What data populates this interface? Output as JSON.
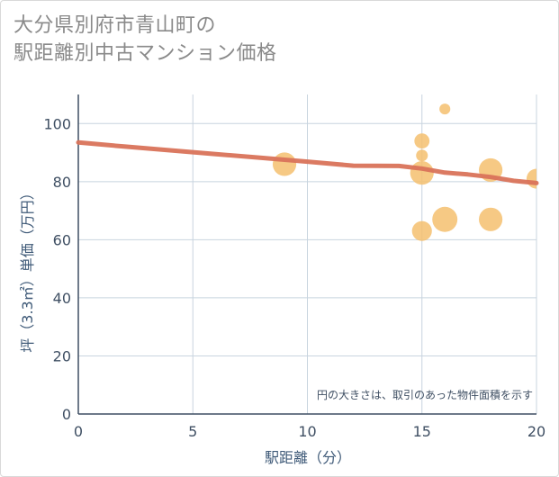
{
  "title_line1": "大分県別府市青山町の",
  "title_line2": "駅距離別中古マンション価格",
  "chart_data": {
    "type": "scatter",
    "title": "大分県別府市青山町の駅距離別中古マンション価格",
    "xlabel": "駅距離（分）",
    "ylabel": "坪（3.3㎡）単価（万円）",
    "xlim": [
      0,
      20
    ],
    "ylim": [
      0,
      110
    ],
    "xticks": [
      0,
      5,
      10,
      15,
      20
    ],
    "yticks": [
      0,
      20,
      40,
      60,
      80,
      100
    ],
    "grid": true,
    "note": "円の大きさは、取引のあった物件面積を示す",
    "points": [
      {
        "x": 9,
        "y": 86,
        "size": 3
      },
      {
        "x": 15,
        "y": 94,
        "size": 1
      },
      {
        "x": 15,
        "y": 89,
        "size": 0.5
      },
      {
        "x": 15,
        "y": 83,
        "size": 3
      },
      {
        "x": 15,
        "y": 63,
        "size": 2
      },
      {
        "x": 16,
        "y": 105,
        "size": 0.4
      },
      {
        "x": 16,
        "y": 67,
        "size": 3.5
      },
      {
        "x": 18,
        "y": 84,
        "size": 3
      },
      {
        "x": 18,
        "y": 67,
        "size": 3
      },
      {
        "x": 20,
        "y": 81,
        "size": 2
      }
    ],
    "trend": [
      {
        "x": 0,
        "y": 93.5
      },
      {
        "x": 2,
        "y": 92.1
      },
      {
        "x": 4,
        "y": 90.8
      },
      {
        "x": 6,
        "y": 89.5
      },
      {
        "x": 8,
        "y": 88.2
      },
      {
        "x": 10,
        "y": 86.9
      },
      {
        "x": 12,
        "y": 85.5
      },
      {
        "x": 14,
        "y": 85.4
      },
      {
        "x": 15,
        "y": 84.5
      },
      {
        "x": 16,
        "y": 83.1
      },
      {
        "x": 17,
        "y": 82.5
      },
      {
        "x": 18,
        "y": 81.6
      },
      {
        "x": 19,
        "y": 80.3
      },
      {
        "x": 20,
        "y": 79.5
      }
    ],
    "colors": {
      "points": "#f4bf6e",
      "trend": "#d9735a",
      "grid": "#c8d4df",
      "tick": "#3f4f63"
    }
  }
}
